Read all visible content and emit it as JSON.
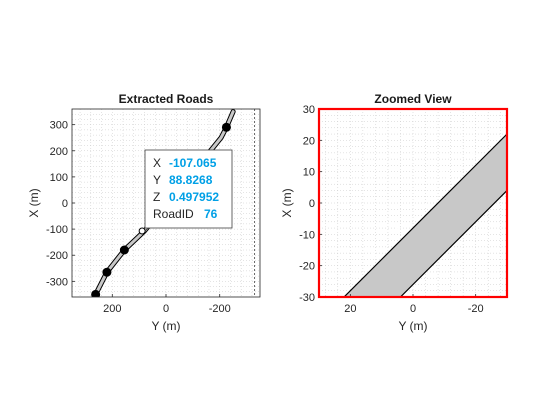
{
  "chart_data": [
    {
      "type": "line",
      "title": "Extracted Roads",
      "xlabel": "Y (m)",
      "ylabel": "X (m)",
      "xlim": [
        -350,
        350
      ],
      "ylim": [
        -360,
        360
      ],
      "x_reversed": true,
      "x_ticks": [
        200,
        0,
        -200
      ],
      "y_ticks": [
        300,
        200,
        100,
        0,
        -100,
        -200,
        -300
      ],
      "grid": "minor",
      "road": {
        "centerline": [
          {
            "y": 262,
            "x": -350
          },
          {
            "y": 220,
            "x": -265
          },
          {
            "y": 155,
            "x": -180
          },
          {
            "y": 80,
            "x": -107
          },
          {
            "y": 10,
            "x": -20
          },
          {
            "y": -90,
            "x": 90
          },
          {
            "y": -150,
            "x": 180
          },
          {
            "y": -205,
            "x": 250
          },
          {
            "y": -225,
            "x": 290
          },
          {
            "y": -250,
            "x": 350
          }
        ],
        "waypoints": [
          {
            "y": 262,
            "x": -350
          },
          {
            "y": 220,
            "x": -265
          },
          {
            "y": 155,
            "x": -180
          },
          {
            "y": -225,
            "x": 290
          }
        ],
        "selected_point": {
          "y": 88.8268,
          "x": -107.065
        }
      },
      "datatip": {
        "rows": [
          {
            "key": "X",
            "value": "-107.065"
          },
          {
            "key": "Y",
            "value": "88.8268"
          },
          {
            "key": "Z",
            "value": "0.497952"
          },
          {
            "key": "RoadID",
            "value": "76"
          }
        ]
      }
    },
    {
      "type": "line",
      "title": "Zoomed View",
      "xlabel": "Y (m)",
      "ylabel": "X (m)",
      "xlim": [
        -30,
        30
      ],
      "ylim": [
        -30,
        30
      ],
      "x_reversed": true,
      "x_ticks": [
        20,
        0,
        -20
      ],
      "y_ticks": [
        30,
        20,
        10,
        0,
        -10,
        -20,
        -30
      ],
      "grid": "minor",
      "frame_color": "#ff0000"
    }
  ],
  "colors": {
    "road_fill": "#c8c8c8",
    "road_edge": "#000000",
    "lane_mark": "#ffffff",
    "datatip_value": "#00a0e6",
    "zoom_frame": "#ff0000"
  }
}
